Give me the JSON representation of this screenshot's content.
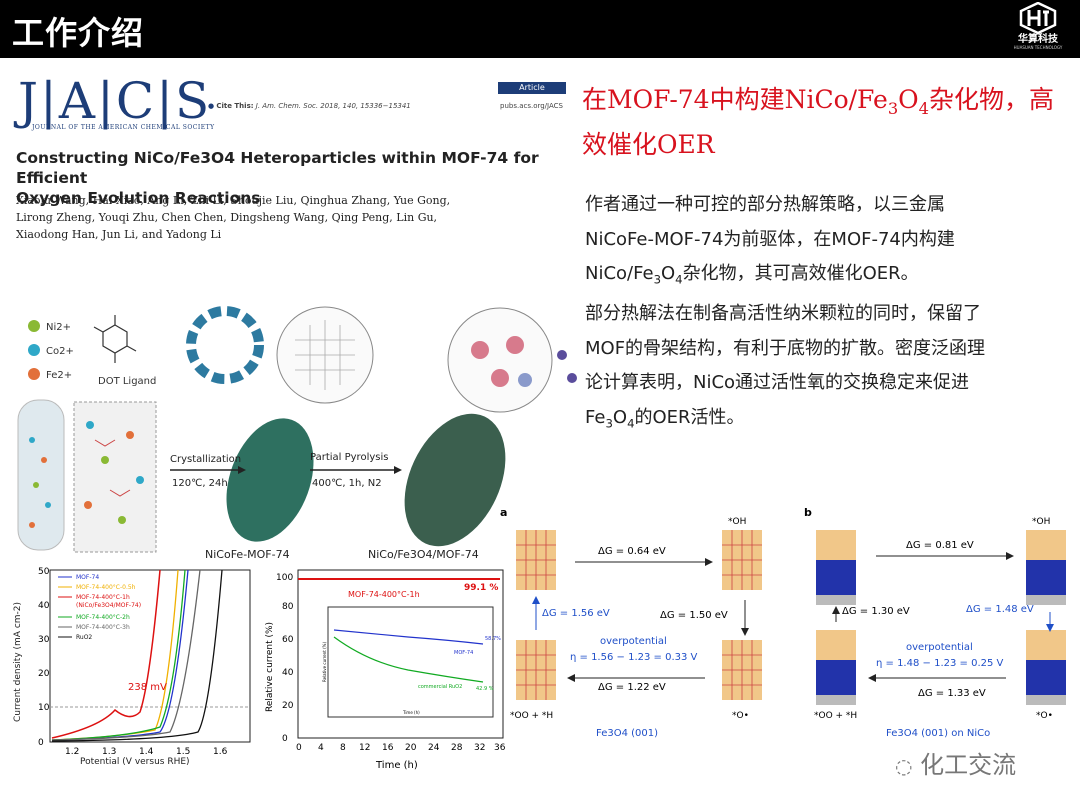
{
  "header": {
    "title": "工作介绍",
    "logo_name": "华算科技",
    "logo_sub": "HUASUAN TECHNOLOGY"
  },
  "paper": {
    "journal_logo": "J|A|C|S",
    "journal_full": "JOURNAL OF THE AMERICAN CHEMICAL SOCIETY",
    "article_tag": "Article",
    "cite_label": "Cite This:",
    "cite_ref": "J. Am. Chem. Soc. 2018, 140, 15336−15341",
    "pubs_url": "pubs.acs.org/JACS",
    "title_line1": "Constructing NiCo/Fe3O4 Heteroparticles within MOF-74 for Efficient",
    "title_line2": "Oxygen Evolution Reactions",
    "authors_line1": "Xiaolu Wang, Hai Xiao, Ang Li, Zhi Li, Shoujie Liu, Qinghua Zhang, Yue Gong,",
    "authors_line2": "Lirong Zheng, Youqi Zhu, Chen Chen, Dingsheng Wang, Qing Peng, Lin Gu,",
    "authors_line3": "Xiaodong Han, Jun Li, and Yadong Li"
  },
  "heading": {
    "line1_a": "在MOF-74中构建NiCo/Fe",
    "line1_sub3": "3",
    "line1_b": "O",
    "line1_sub4": "4",
    "line1_c": "杂化物，高",
    "line2": "效催化OER"
  },
  "body": {
    "p1_line1": "作者通过一种可控的部分热解策略，以三金属",
    "p1_line2": "NiCoFe-MOF-74为前驱体，在MOF-74内构建",
    "p1_line3a": "NiCo/Fe",
    "p1_sub3": "3",
    "p1_line3b": "O",
    "p1_sub4": "4",
    "p1_line3c": "杂化物，其可高效催化OER。",
    "p2_line1": "部分热解法在制备高活性纳米颗粒的同时，保留了",
    "p2_line2": "MOF的骨架结构，有利于底物的扩散。密度泛函理",
    "p2_line3": "论计算表明，NiCo通过活性氧的交换稳定来促进",
    "p2_line4a": "Fe",
    "p2_sub3": "3",
    "p2_line4b": "O",
    "p2_sub4": "4",
    "p2_line4c": "的OER活性。"
  },
  "scheme": {
    "legend_ni": "Ni2+",
    "legend_co": "Co2+",
    "legend_fe": "Fe2+",
    "ligand": "DOT Ligand",
    "step1": "Crystallization",
    "step1_cond": "120℃, 24h",
    "step2": "Partial Pyrolysis",
    "step2_cond": "400℃, 1h, N2",
    "product1": "NiCoFe-MOF-74",
    "product2": "NiCo/Fe3O4/MOF-74",
    "colors": {
      "ni": "#8ab934",
      "co": "#2fa8c8",
      "fe": "#e2703a",
      "mof": "#2e7060",
      "mof2": "#3b5f4e"
    }
  },
  "lsv": {
    "ylabel": "Current density (mA cm-2)",
    "xlabel": "Potential (V versus RHE)",
    "annotation": "238 mV",
    "yticks": [
      "0",
      "10",
      "20",
      "30",
      "40",
      "50"
    ],
    "xticks": [
      "1.2",
      "1.3",
      "1.4",
      "1.5",
      "1.6"
    ],
    "legend": [
      "MOF-74",
      "MOF-74-400°C-0.5h",
      "MOF-74-400°C-1h",
      "(NiCo/Fe3O4/MOF-74)",
      "MOF-74-400°C-2h",
      "MOF-74-400°C-3h",
      "RuO2"
    ]
  },
  "stability": {
    "ylabel": "Relative current (%)",
    "xlabel": "Time (h)",
    "series_label": "MOF-74-400°C-1h",
    "value_label": "99.1 %",
    "yticks": [
      "0",
      "20",
      "40",
      "60",
      "80",
      "100"
    ],
    "xticks": [
      "0",
      "4",
      "8",
      "12",
      "16",
      "20",
      "24",
      "28",
      "32",
      "36"
    ],
    "inset_ylabel": "Relative current (%)",
    "inset_xlabel": "Time (h)",
    "inset_mof": "MOF-74",
    "inset_ruo2": "commercial RuO2",
    "inset_v1": "58.7%",
    "inset_v2": "42.9 %"
  },
  "panel_a": {
    "label": "a",
    "oh": "*OH",
    "dg1": "ΔG = 0.64 eV",
    "dg2": "ΔG = 1.50 eV",
    "dg3": "ΔG = 1.22 eV",
    "dg4": "ΔG = 1.56 eV",
    "over": "overpotential",
    "eta": "η = 1.56 − 1.23 = 0.33 V",
    "ooh": "*OO + *H",
    "o": "*O•",
    "caption": "Fe3O4 (001)"
  },
  "panel_b": {
    "label": "b",
    "oh": "*OH",
    "dg1": "ΔG = 0.81 eV",
    "dg2": "ΔG = 1.48 eV",
    "dg3": "ΔG = 1.33 eV",
    "dg4": "ΔG = 1.30 eV",
    "over": "overpotential",
    "eta": "η = 1.48 − 1.23 = 0.25 V",
    "ooh": "*OO + *H",
    "o": "*O•",
    "caption": "Fe3O4 (001) on NiCo"
  },
  "watermark": "化工交流"
}
